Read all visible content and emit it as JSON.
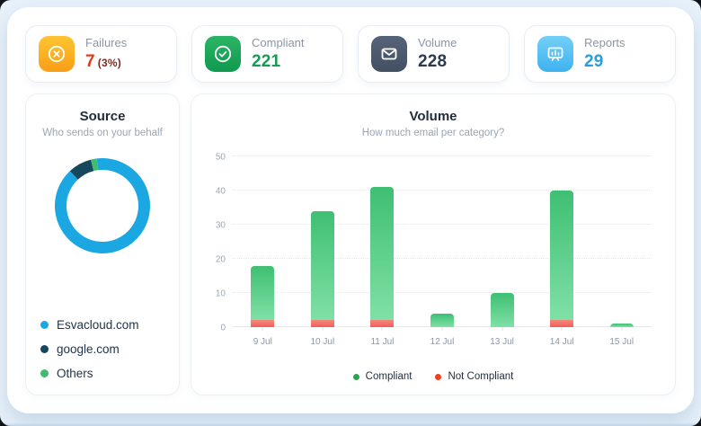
{
  "colors": {
    "window_bg": "#e7f1fa",
    "panel_bg": "#ffffff",
    "failures_accent": "#e13a1f",
    "compliant_accent": "#169d53",
    "volume_accent": "#2b3a4e",
    "reports_accent": "#2a9de0",
    "donut_blue": "#1ba7e1",
    "donut_navy": "#16475f",
    "donut_green": "#3fbd6e",
    "bar_green": "#3fbf73",
    "bar_red": "#ef5f58"
  },
  "stats": [
    {
      "label": "Failures",
      "value": "7",
      "suffix": "(3%)",
      "icon": "circle-x-icon"
    },
    {
      "label": "Compliant",
      "value": "221",
      "icon": "check-circle-icon"
    },
    {
      "label": "Volume",
      "value": "228",
      "icon": "envelope-icon"
    },
    {
      "label": "Reports",
      "value": "29",
      "icon": "presentation-chart-icon"
    }
  ],
  "chart_data": [
    {
      "type": "pie",
      "donut": true,
      "title": "Source",
      "subtitle": "Who sends on your behalf",
      "start_angle_deg": 353,
      "segments": [
        {
          "label": "Esvacloud.com",
          "color": "#1ba7e1",
          "percent": 90
        },
        {
          "label": "google.com",
          "color": "#16475f",
          "percent": 8
        },
        {
          "label": "Others",
          "color": "#3fbd6e",
          "percent": 2
        }
      ],
      "legend_position": "bottom-left"
    },
    {
      "type": "bar",
      "stacked": true,
      "title": "Volume",
      "subtitle": "How much email per category?",
      "categories": [
        "9 Jul",
        "10 Jul",
        "11 Jul",
        "12 Jul",
        "13 Jul",
        "14 Jul",
        "15 Jul"
      ],
      "series": [
        {
          "name": "Compliant",
          "color": "#3fbf73",
          "dot_color": "#2ca44d",
          "values": [
            16,
            32,
            39,
            4,
            10,
            38,
            1
          ]
        },
        {
          "name": "Not Compliant",
          "color": "#ef5f58",
          "dot_color": "#ee4123",
          "values": [
            2,
            2,
            2,
            0,
            0,
            2,
            0
          ]
        }
      ],
      "ylim": [
        0,
        50
      ],
      "yticks": [
        0,
        10,
        20,
        30,
        40,
        50
      ],
      "grid": "dotted-horizontal",
      "legend_position": "bottom"
    }
  ]
}
